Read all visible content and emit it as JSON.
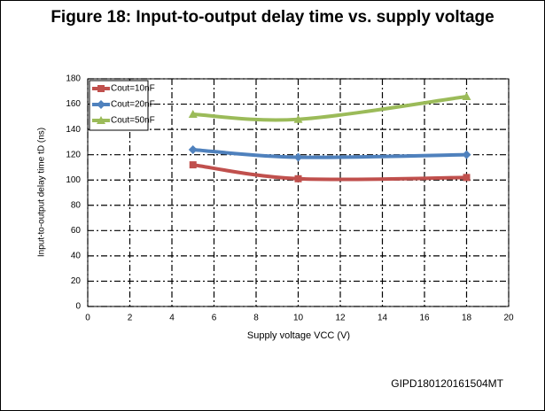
{
  "chart_data": {
    "type": "line",
    "title": "Figure 18: Input-to-output delay time vs. supply voltage",
    "x_label": "Supply voltage VCC (V)",
    "y_label": "Input-to-output delay time tD (ns)",
    "x": [
      5,
      10,
      18
    ],
    "series": [
      {
        "name": "Cout=10nF",
        "color": "#c0504d",
        "marker": "square",
        "values": [
          112,
          101,
          102
        ]
      },
      {
        "name": "Cout=20nF",
        "color": "#4f81bd",
        "marker": "diamond",
        "values": [
          124,
          118,
          120
        ]
      },
      {
        "name": "Cout=50nF",
        "color": "#9bbb59",
        "marker": "triangle",
        "values": [
          152,
          148,
          166
        ]
      }
    ],
    "xlim": [
      0,
      20
    ],
    "xticks": [
      0,
      2,
      4,
      6,
      8,
      10,
      12,
      14,
      16,
      18,
      20
    ],
    "ylim": [
      0,
      180
    ],
    "yticks": [
      0,
      20,
      40,
      60,
      80,
      100,
      120,
      140,
      160,
      180
    ],
    "grid": true,
    "legend": "upper left",
    "footnote": "GIPD180120161504MT"
  }
}
